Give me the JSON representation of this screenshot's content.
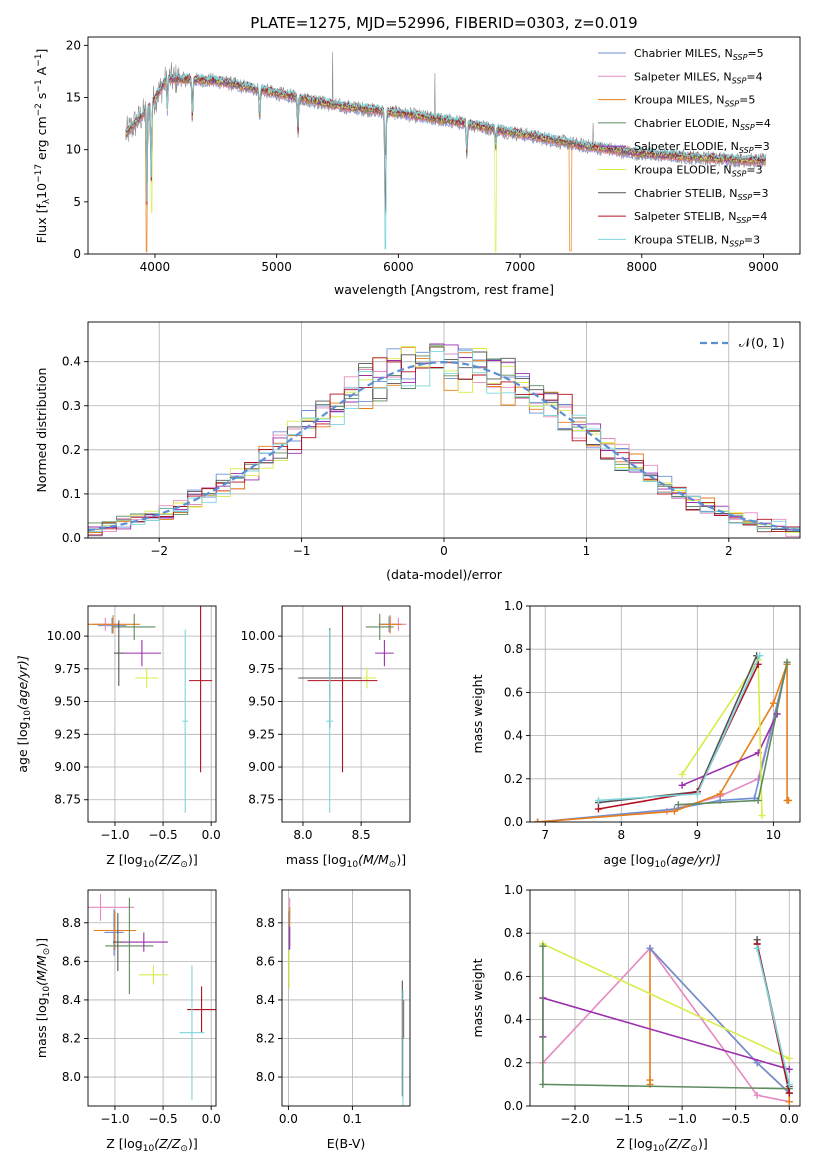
{
  "colors": {
    "chabrier_miles": "#6f8fd8",
    "salpeter_miles": "#e58ac0",
    "kroupa_miles": "#e57f1a",
    "chabrier_elodie": "#5f8a5f",
    "salpeter_elodie": "#9b2fae",
    "kroupa_elodie": "#d9ec4a",
    "chabrier_stelib": "#555555",
    "salpeter_stelib": "#b01020",
    "kroupa_stelib": "#7dd6dc",
    "spectrum": "#8a8a8a",
    "normal_curve": "#5b8fd6"
  },
  "chart_data": [
    {
      "type": "line",
      "id": "spectrum",
      "title": "PLATE=1275, MJD=52996, FIBERID=0303, z=0.019",
      "xlabel": "wavelength [Angstrom, rest frame]",
      "ylabel_parts": [
        "Flux [f",
        "λ",
        "10",
        "−17",
        " erg cm",
        "−2",
        " s",
        "−1",
        " A",
        "−1",
        "]"
      ],
      "xlim": [
        3450,
        9300
      ],
      "ylim": [
        0,
        20.8
      ],
      "xticks": [
        "4000",
        "5000",
        "6000",
        "7000",
        "8000",
        "9000"
      ],
      "xtick_values": [
        4000,
        5000,
        6000,
        7000,
        8000,
        9000
      ],
      "yticks": [
        "0",
        "5",
        "10",
        "15",
        "20"
      ],
      "ytick_values": [
        0,
        5,
        10,
        15,
        20
      ],
      "grid": false,
      "legend_position": "top-right",
      "data_range": [
        3760,
        9020
      ],
      "continuum_points": [
        [
          3760,
          11.5
        ],
        [
          3950,
          14.0
        ],
        [
          4100,
          16.8
        ],
        [
          4500,
          16.6
        ],
        [
          5000,
          15.4
        ],
        [
          5500,
          14.2
        ],
        [
          6000,
          13.5
        ],
        [
          6500,
          12.6
        ],
        [
          7000,
          11.5
        ],
        [
          7500,
          10.4
        ],
        [
          8000,
          9.6
        ],
        [
          8500,
          9.2
        ],
        [
          9000,
          8.9
        ]
      ],
      "absorption_lines": [
        [
          3934,
          9.0
        ],
        [
          3969,
          7.5
        ],
        [
          4102,
          3.0
        ],
        [
          4308,
          4.0
        ],
        [
          4861,
          3.0
        ],
        [
          5175,
          3.5
        ],
        [
          5893,
          12.0
        ],
        [
          6563,
          3.0
        ],
        [
          6800,
          2.0
        ]
      ],
      "spikes": [
        [
          5460,
          5.0
        ],
        [
          6300,
          4.5
        ],
        [
          7600,
          3.0
        ]
      ],
      "series_names": [
        "Chabrier MILES, N",
        "Salpeter MILES, N",
        "Kroupa MILES, N",
        "Chabrier ELODIE, N",
        "Salpeter ELODIE, N",
        "Kroupa ELODIE, N",
        "Chabrier STELIB, N",
        "Salpeter STELIB, N",
        "Kroupa STELIB, N"
      ],
      "series_sub": "SSP",
      "series_nssp": [
        "=5",
        "=4",
        "=5",
        "=4",
        "=3",
        "=3",
        "=3",
        "=4",
        "=3"
      ],
      "series_colors": [
        "#6f8fd8",
        "#e58ac0",
        "#e57f1a",
        "#5f8a5f",
        "#9b2fae",
        "#d9ec4a",
        "#555555",
        "#b01020",
        "#7dd6dc"
      ]
    },
    {
      "type": "line",
      "id": "residuals",
      "xlabel": "(data-model)/error",
      "ylabel": "Normed distribution",
      "xlim": [
        -2.5,
        2.5
      ],
      "ylim": [
        0,
        0.49
      ],
      "xticks": [
        "−2",
        "−1",
        "0",
        "1",
        "2"
      ],
      "xtick_values": [
        -2,
        -1,
        0,
        1,
        2
      ],
      "yticks": [
        "0.0",
        "0.1",
        "0.2",
        "0.3",
        "0.4"
      ],
      "ytick_values": [
        0,
        0.1,
        0.2,
        0.3,
        0.4
      ],
      "grid": true,
      "legend_label": "𝒩(0, 1)",
      "legend_position": "top-right",
      "bin_width": 0.1
    },
    {
      "type": "scatter",
      "id": "age_vs_Z",
      "xlabel_parts": [
        "Z [log",
        "10",
        "(Z/Z",
        "⊙",
        ")]"
      ],
      "ylabel_parts": [
        "age  [log",
        "10",
        "(age/yr)]"
      ],
      "xlim": [
        -1.28,
        0.05
      ],
      "ylim": [
        8.58,
        10.23
      ],
      "xticks": [
        "−1.0",
        "−0.5",
        "0.0"
      ],
      "xtick_values": [
        -1.0,
        -0.5,
        0.0
      ],
      "yticks": [
        "8.75",
        "9.00",
        "9.25",
        "9.50",
        "9.75",
        "10.00"
      ],
      "ytick_values": [
        8.75,
        9.0,
        9.25,
        9.5,
        9.75,
        10.0
      ],
      "grid": true,
      "points": [
        {
          "c": "#6f8fd8",
          "x": -1.03,
          "y": 10.08,
          "ex": 0.15,
          "ey": 0.06
        },
        {
          "c": "#e58ac0",
          "x": -1.1,
          "y": 10.09,
          "ex": 0.13,
          "ey": 0.05
        },
        {
          "c": "#e57f1a",
          "x": -1.02,
          "y": 10.09,
          "ex": 0.28,
          "ey": 0.07
        },
        {
          "c": "#5f8a5f",
          "x": -0.8,
          "y": 10.07,
          "ex": 0.22,
          "ey": 0.1
        },
        {
          "c": "#9b2fae",
          "x": -0.72,
          "y": 9.87,
          "ex": 0.2,
          "ey": 0.1
        },
        {
          "c": "#d9ec4a",
          "x": -0.67,
          "y": 9.68,
          "ex": 0.12,
          "ey": 0.08
        },
        {
          "c": "#555555",
          "x": -0.96,
          "y": 9.87,
          "ex": 0.05,
          "ey": 0.25
        },
        {
          "c": "#b01020",
          "x": -0.11,
          "y": 9.66,
          "ex": 0.12,
          "ey": 0.7
        },
        {
          "c": "#7dd6dc",
          "x": -0.27,
          "y": 9.35,
          "ex": 0.03,
          "ey": 0.7
        }
      ]
    },
    {
      "type": "scatter",
      "id": "age_vs_mass",
      "xlabel_parts": [
        "mass [log",
        "10",
        "(M/M",
        "⊙",
        ")]"
      ],
      "xlim": [
        7.82,
        8.92
      ],
      "ylim": [
        8.58,
        10.23
      ],
      "xticks": [
        "8.0",
        "8.5"
      ],
      "xtick_values": [
        8.0,
        8.5
      ],
      "yticks": [
        "8.75",
        "9.00",
        "9.25",
        "9.50",
        "9.75",
        "10.00"
      ],
      "ytick_values": [
        8.75,
        9.0,
        9.25,
        9.5,
        9.75,
        10.0
      ],
      "grid": true,
      "points": [
        {
          "c": "#6f8fd8",
          "x": 8.74,
          "y": 10.09,
          "ex": 0.08,
          "ey": 0.06
        },
        {
          "c": "#e58ac0",
          "x": 8.82,
          "y": 10.09,
          "ex": 0.07,
          "ey": 0.05
        },
        {
          "c": "#e57f1a",
          "x": 8.75,
          "y": 10.09,
          "ex": 0.1,
          "ey": 0.07
        },
        {
          "c": "#5f8a5f",
          "x": 8.66,
          "y": 10.07,
          "ex": 0.12,
          "ey": 0.1
        },
        {
          "c": "#9b2fae",
          "x": 8.7,
          "y": 9.87,
          "ex": 0.08,
          "ey": 0.1
        },
        {
          "c": "#d9ec4a",
          "x": 8.55,
          "y": 9.68,
          "ex": 0.08,
          "ey": 0.08
        },
        {
          "c": "#555555",
          "x": 8.23,
          "y": 9.68,
          "ex": 0.27,
          "ey": 0.38
        },
        {
          "c": "#b01020",
          "x": 8.34,
          "y": 9.66,
          "ex": 0.3,
          "ey": 0.7
        },
        {
          "c": "#7dd6dc",
          "x": 8.23,
          "y": 9.35,
          "ex": 0.03,
          "ey": 0.7
        }
      ]
    },
    {
      "type": "line",
      "id": "massweight_vs_age",
      "xlabel_parts": [
        "age  [log",
        "10",
        "(age/yr)]"
      ],
      "ylabel": "mass weight",
      "xlim": [
        6.8,
        10.35
      ],
      "ylim": [
        0,
        1.0
      ],
      "xticks": [
        "7",
        "8",
        "9",
        "10"
      ],
      "xtick_values": [
        7,
        8,
        9,
        10
      ],
      "yticks": [
        "0.0",
        "0.2",
        "0.4",
        "0.6",
        "0.8",
        "1.0"
      ],
      "ytick_values": [
        0,
        0.2,
        0.4,
        0.6,
        0.8,
        1.0
      ],
      "grid": true,
      "series": [
        {
          "c": "#e58ac0",
          "x": [
            6.9,
            8.6,
            9.3,
            9.8,
            10.18
          ],
          "y": [
            0.0,
            0.05,
            0.12,
            0.2,
            0.73
          ]
        },
        {
          "c": "#6f8fd8",
          "x": [
            6.9,
            8.7,
            9.3,
            9.75,
            10.18
          ],
          "y": [
            0.0,
            0.06,
            0.1,
            0.11,
            0.73
          ]
        },
        {
          "c": "#e57f1a",
          "x": [
            6.9,
            8.7,
            9.3,
            10.0,
            10.18,
            10.18,
            10.2
          ],
          "y": [
            0.0,
            0.05,
            0.13,
            0.55,
            0.73,
            0.1,
            0.1
          ]
        },
        {
          "c": "#9b2fae",
          "x": [
            8.8,
            9.8,
            10.05
          ],
          "y": [
            0.17,
            0.32,
            0.5
          ]
        },
        {
          "c": "#d9ec4a",
          "x": [
            8.8,
            9.8,
            9.85
          ],
          "y": [
            0.22,
            0.75,
            0.03
          ]
        },
        {
          "c": "#5f8a5f",
          "x": [
            8.75,
            9.8,
            10.18
          ],
          "y": [
            0.08,
            0.1,
            0.74
          ]
        },
        {
          "c": "#555555",
          "x": [
            7.7,
            9.0,
            9.78
          ],
          "y": [
            0.09,
            0.14,
            0.77
          ]
        },
        {
          "c": "#b01020",
          "x": [
            7.7,
            9.0,
            9.8
          ],
          "y": [
            0.06,
            0.14,
            0.73
          ]
        },
        {
          "c": "#7dd6dc",
          "x": [
            7.7,
            9.0,
            9.82
          ],
          "y": [
            0.1,
            0.13,
            0.77
          ]
        }
      ]
    },
    {
      "type": "scatter",
      "id": "mass_vs_Z",
      "xlabel_parts": [
        "Z [log",
        "10",
        "(Z/Z",
        "⊙",
        ")]"
      ],
      "ylabel_parts": [
        "mass [log",
        "10",
        "(M/M",
        "⊙",
        ")]"
      ],
      "xlim": [
        -1.28,
        0.05
      ],
      "ylim": [
        7.85,
        8.97
      ],
      "xticks": [
        "−1.0",
        "−0.5",
        "0.0"
      ],
      "xtick_values": [
        -1.0,
        -0.5,
        0.0
      ],
      "yticks": [
        "8.0",
        "8.2",
        "8.4",
        "8.6",
        "8.8"
      ],
      "ytick_values": [
        8.0,
        8.2,
        8.4,
        8.6,
        8.8
      ],
      "grid": true,
      "points": [
        {
          "c": "#e58ac0",
          "x": -1.15,
          "y": 8.88,
          "ex": 0.35,
          "ey": 0.07
        },
        {
          "c": "#6f8fd8",
          "x": -1.01,
          "y": 8.75,
          "ex": 0.1,
          "ey": 0.12
        },
        {
          "c": "#e57f1a",
          "x": -1.0,
          "y": 8.76,
          "ex": 0.22,
          "ey": 0.1
        },
        {
          "c": "#5f8a5f",
          "x": -0.85,
          "y": 8.68,
          "ex": 0.25,
          "ey": 0.25
        },
        {
          "c": "#9b2fae",
          "x": -0.7,
          "y": 8.7,
          "ex": 0.25,
          "ey": 0.05
        },
        {
          "c": "#d9ec4a",
          "x": -0.6,
          "y": 8.53,
          "ex": 0.15,
          "ey": 0.05
        },
        {
          "c": "#555555",
          "x": -0.97,
          "y": 8.7,
          "ex": 0.05,
          "ey": 0.15
        },
        {
          "c": "#b01020",
          "x": -0.1,
          "y": 8.35,
          "ex": 0.15,
          "ey": 0.12
        },
        {
          "c": "#7dd6dc",
          "x": -0.2,
          "y": 8.23,
          "ex": 0.13,
          "ey": 0.35
        }
      ]
    },
    {
      "type": "scatter",
      "id": "mass_vs_EBV",
      "xlabel": "E(B-V)",
      "xlim": [
        -0.01,
        0.19
      ],
      "ylim": [
        7.85,
        8.97
      ],
      "xticks": [
        "0.0",
        "0.1"
      ],
      "xtick_values": [
        0.0,
        0.1
      ],
      "yticks": [
        "8.0",
        "8.2",
        "8.4",
        "8.6",
        "8.8"
      ],
      "ytick_values": [
        8.0,
        8.2,
        8.4,
        8.6,
        8.8
      ],
      "grid": true,
      "points": [
        {
          "c": "#e58ac0",
          "x": 0.002,
          "y": 8.86,
          "ex": 0.0,
          "ey": 0.07
        },
        {
          "c": "#6f8fd8",
          "x": 0.001,
          "y": 8.76,
          "ex": 0.0,
          "ey": 0.1
        },
        {
          "c": "#e57f1a",
          "x": 0.002,
          "y": 8.78,
          "ex": 0.0,
          "ey": 0.1
        },
        {
          "c": "#9b2fae",
          "x": 0.002,
          "y": 8.72,
          "ex": 0.0,
          "ey": 0.06
        },
        {
          "c": "#d9ec4a",
          "x": 0.001,
          "y": 8.56,
          "ex": 0.0,
          "ey": 0.1
        },
        {
          "c": "#555555",
          "x": 0.178,
          "y": 8.2,
          "ex": 0.0,
          "ey": 0.3
        },
        {
          "c": "#b01020",
          "x": 0.18,
          "y": 8.3,
          "ex": 0.0,
          "ey": 0.1
        },
        {
          "c": "#7dd6dc",
          "x": 0.179,
          "y": 8.15,
          "ex": 0.0,
          "ey": 0.3
        }
      ]
    },
    {
      "type": "line",
      "id": "massweight_vs_Z",
      "xlabel_parts": [
        "Z [log",
        "10",
        "(Z/Z",
        "⊙",
        ")]"
      ],
      "ylabel": "mass weight",
      "xlim": [
        -2.42,
        0.1
      ],
      "ylim": [
        0,
        1.0
      ],
      "xticks": [
        "−2.0",
        "−1.5",
        "−1.0",
        "−0.5",
        "0.0"
      ],
      "xtick_values": [
        -2.0,
        -1.5,
        -1.0,
        -0.5,
        0.0
      ],
      "yticks": [
        "0.0",
        "0.2",
        "0.4",
        "0.6",
        "0.8",
        "1.0"
      ],
      "ytick_values": [
        0,
        0.2,
        0.4,
        0.6,
        0.8,
        1.0
      ],
      "grid": true,
      "series": [
        {
          "c": "#e58ac0",
          "x": [
            -2.3,
            -1.3,
            -0.3,
            0.0
          ],
          "y": [
            0.2,
            0.73,
            0.05,
            0.02
          ]
        },
        {
          "c": "#e57f1a",
          "x": [
            -1.3,
            -1.3,
            -1.3,
            -0.3,
            0.0,
            0.0
          ],
          "y": [
            0.1,
            0.12,
            0.73,
            0.2,
            0.06,
            0.02
          ]
        },
        {
          "c": "#6f8fd8",
          "x": [
            -1.3,
            -0.3,
            0.0
          ],
          "y": [
            0.73,
            0.2,
            0.06
          ]
        },
        {
          "c": "#9b2fae",
          "x": [
            -2.3,
            -2.3,
            0.0
          ],
          "y": [
            0.32,
            0.5,
            0.17
          ]
        },
        {
          "c": "#d9ec4a",
          "x": [
            -2.3,
            0.0
          ],
          "y": [
            0.75,
            0.22
          ]
        },
        {
          "c": "#5f8a5f",
          "x": [
            -2.3,
            -2.3,
            0.0,
            0.0
          ],
          "y": [
            0.74,
            0.1,
            0.08,
            0.06
          ]
        },
        {
          "c": "#555555",
          "x": [
            -0.3,
            -0.3,
            0.0
          ],
          "y": [
            0.77,
            0.75,
            0.09
          ]
        },
        {
          "c": "#b01020",
          "x": [
            -0.3,
            0.0
          ],
          "y": [
            0.75,
            0.06
          ]
        },
        {
          "c": "#7dd6dc",
          "x": [
            -0.3,
            0.0
          ],
          "y": [
            0.73,
            0.1
          ]
        }
      ]
    }
  ]
}
